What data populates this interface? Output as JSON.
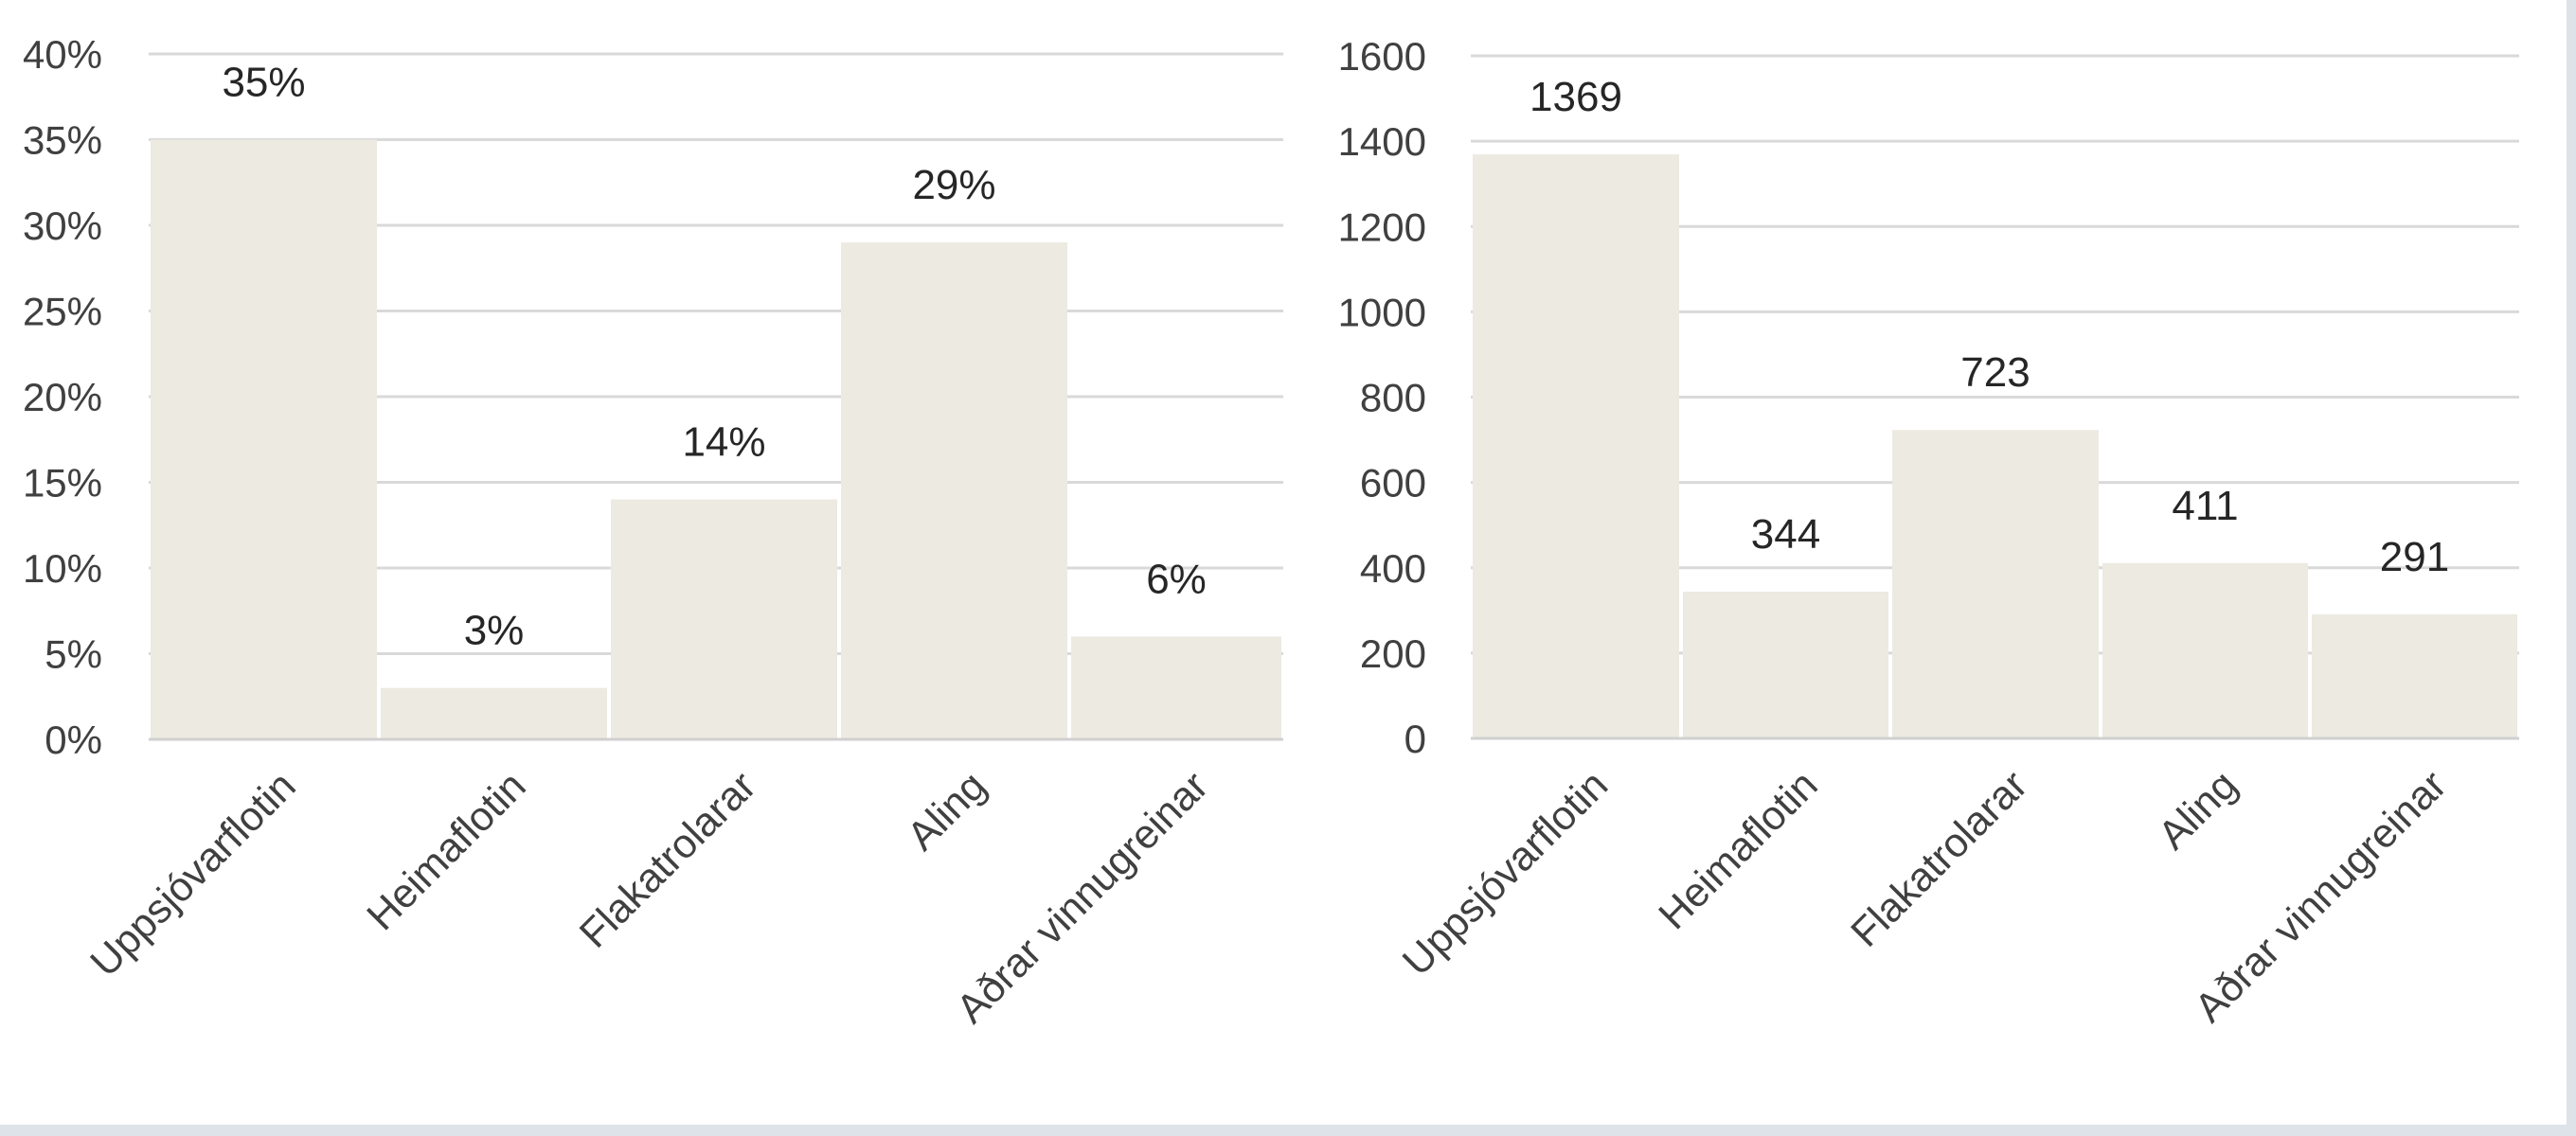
{
  "colors": {
    "bar": "#eceae1",
    "grid": "#d9d9d9",
    "axis": "#d0d0d0",
    "tick_text": "#404040",
    "label_text": "#262626"
  },
  "chart_data": [
    {
      "type": "bar",
      "title": "",
      "xlabel": "",
      "ylabel": "",
      "categories": [
        "Uppsjóvarflotin",
        "Heimaflotin",
        "Flakatrolarar",
        "Aling",
        "Aðrar vinnugreinar"
      ],
      "values": [
        35,
        3,
        14,
        29,
        6
      ],
      "data_labels": [
        "35%",
        "3%",
        "14%",
        "29%",
        "6%"
      ],
      "ylim": [
        0,
        40
      ],
      "yticks": [
        "0%",
        "5%",
        "10%",
        "15%",
        "20%",
        "25%",
        "30%",
        "35%",
        "40%"
      ],
      "grid": true,
      "legend": "none"
    },
    {
      "type": "bar",
      "title": "",
      "xlabel": "",
      "ylabel": "",
      "categories": [
        "Uppsjóvarflotin",
        "Heimaflotin",
        "Flakatrolarar",
        "Aling",
        "Aðrar vinnugreinar"
      ],
      "values": [
        1369,
        344,
        723,
        411,
        291
      ],
      "data_labels": [
        "1369",
        "344",
        "723",
        "411",
        "291"
      ],
      "ylim": [
        0,
        1600
      ],
      "yticks": [
        "0",
        "200",
        "400",
        "600",
        "800",
        "1000",
        "1200",
        "1400",
        "1600"
      ],
      "grid": true,
      "legend": "none"
    }
  ]
}
